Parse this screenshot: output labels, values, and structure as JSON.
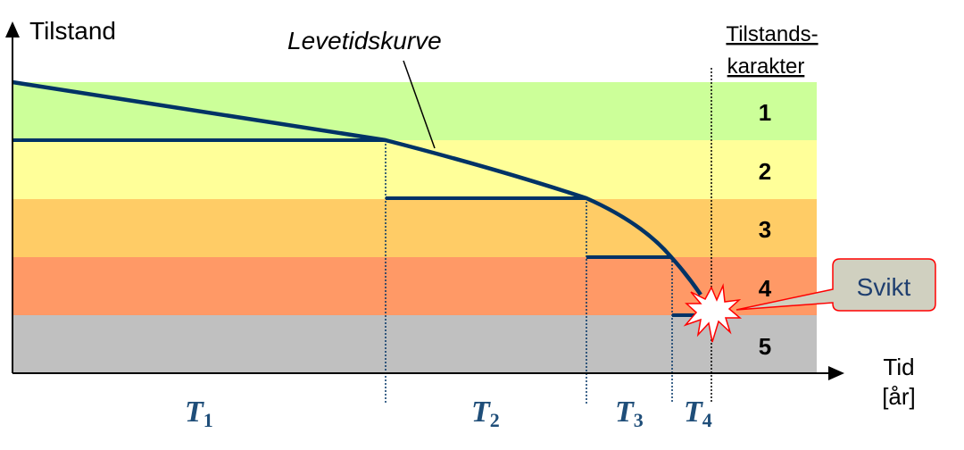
{
  "axes": {
    "y_label": "Tilstand",
    "x_label_line1": "Tid",
    "x_label_line2": "[år]",
    "legend_title_line1": "Tilstands-",
    "legend_title_line2": "karakter"
  },
  "curve_label": "Levetidskurve",
  "grades": [
    "1",
    "2",
    "3",
    "4",
    "5"
  ],
  "periods": [
    {
      "letter": "T",
      "sub": "1"
    },
    {
      "letter": "T",
      "sub": "2"
    },
    {
      "letter": "T",
      "sub": "3"
    },
    {
      "letter": "T",
      "sub": "4"
    }
  ],
  "failure_callout": "Svikt",
  "colors": {
    "grade1": "#ccff99",
    "grade2": "#ffff99",
    "grade3": "#ffcc66",
    "grade4": "#ff9966",
    "grade5": "#c0c0c0",
    "curve": "#003366",
    "callout_fill": "#d0d0c0",
    "callout_border": "#ff0000"
  }
}
